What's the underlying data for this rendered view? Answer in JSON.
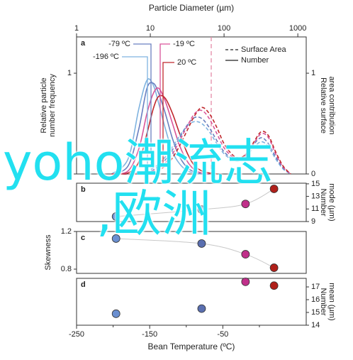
{
  "chart_data": [
    {
      "type": "line",
      "panel": "a",
      "xscale": "log",
      "x_title": "Particle Diameter (µm)",
      "xlim": [
        1,
        1300
      ],
      "xticks": [
        1,
        10,
        100,
        1000
      ],
      "ylabel": [
        "Relative particle",
        "number frequency"
      ],
      "ylim": [
        0,
        1.36
      ],
      "yticks": [
        0,
        1
      ],
      "y2label": [
        "Relative surface",
        "area contribution"
      ],
      "y2lim": [
        0,
        1.36
      ],
      "y2ticks": [
        0,
        1
      ],
      "vline": {
        "x": 67,
        "color": "#e58aa8"
      },
      "legend": [
        "Surface Area",
        "Number"
      ],
      "legend_dash": [
        true,
        false
      ],
      "legend_corner": "top-right",
      "x": [
        3,
        5,
        7,
        9,
        11,
        13,
        16,
        20,
        25,
        32,
        40,
        50,
        63,
        80,
        100,
        130,
        160,
        200,
        250,
        320,
        400,
        500,
        630,
        800
      ],
      "series": [
        {
          "name": "-196 ºC",
          "color": "#7fb3e0",
          "dash": false,
          "values": [
            0,
            0.15,
            0.65,
            0.93,
            0.88,
            0.7,
            0.45,
            0.22,
            0.1,
            0.03,
            0.01,
            0,
            0,
            null,
            null,
            null,
            null,
            null,
            null,
            null,
            null,
            null,
            null,
            null
          ]
        },
        {
          "name": "-79 ºC",
          "color": "#6a7fc0",
          "dash": false,
          "values": [
            0,
            0.08,
            0.45,
            0.85,
            0.9,
            0.8,
            0.6,
            0.35,
            0.17,
            0.06,
            0.02,
            0,
            0,
            null,
            null,
            null,
            null,
            null,
            null,
            null,
            null,
            null,
            null,
            null
          ]
        },
        {
          "name": "-19 ºC",
          "color": "#d9559a",
          "dash": false,
          "values": [
            0,
            0.03,
            0.25,
            0.6,
            0.8,
            0.85,
            0.72,
            0.5,
            0.28,
            0.12,
            0.04,
            0.01,
            0,
            null,
            null,
            null,
            null,
            null,
            null,
            null,
            null,
            null,
            null,
            null
          ]
        },
        {
          "name": "20 ºC",
          "color": "#c0282d",
          "dash": false,
          "values": [
            0,
            0.01,
            0.12,
            0.4,
            0.65,
            0.77,
            0.75,
            0.6,
            0.4,
            0.2,
            0.08,
            0.03,
            0.01,
            0,
            null,
            null,
            null,
            null,
            null,
            null,
            null,
            null,
            null,
            null
          ]
        },
        {
          "color": "#7fb3e0",
          "dash": true,
          "values": [
            0,
            0,
            0.01,
            0.03,
            0.06,
            0.1,
            0.17,
            0.27,
            0.38,
            0.48,
            0.52,
            0.5,
            0.42,
            0.3,
            0.2,
            0.14,
            0.13,
            0.17,
            0.26,
            0.32,
            0.27,
            0.15,
            0.05,
            0
          ]
        },
        {
          "color": "#6a7fc0",
          "dash": true,
          "values": [
            0,
            0,
            0.01,
            0.02,
            0.04,
            0.08,
            0.14,
            0.24,
            0.36,
            0.49,
            0.56,
            0.55,
            0.46,
            0.33,
            0.22,
            0.15,
            0.14,
            0.19,
            0.29,
            0.36,
            0.3,
            0.17,
            0.06,
            0
          ]
        },
        {
          "color": "#d9559a",
          "dash": true,
          "values": [
            0,
            0,
            0,
            0.01,
            0.03,
            0.06,
            0.11,
            0.2,
            0.33,
            0.48,
            0.6,
            0.63,
            0.55,
            0.4,
            0.26,
            0.17,
            0.15,
            0.2,
            0.3,
            0.4,
            0.36,
            0.2,
            0.07,
            0
          ]
        },
        {
          "color": "#c0282d",
          "dash": true,
          "values": [
            0,
            0,
            0,
            0.01,
            0.02,
            0.04,
            0.08,
            0.16,
            0.28,
            0.44,
            0.58,
            0.66,
            0.6,
            0.46,
            0.3,
            0.19,
            0.16,
            0.2,
            0.31,
            0.42,
            0.38,
            0.22,
            0.08,
            0
          ]
        }
      ]
    },
    {
      "type": "scatter",
      "panel": "b",
      "xlim": [
        -250,
        64
      ],
      "trend": true,
      "ylabel": [
        "Number",
        "mode (µm)"
      ],
      "y_side": "right",
      "ylim": [
        9,
        15.1
      ],
      "yticks": [
        9,
        11,
        13,
        15
      ],
      "x": [
        -196,
        -79,
        -19,
        20
      ],
      "values": [
        9.8,
        10.9,
        11.8,
        14.2
      ],
      "colors": [
        "#6a8fd0",
        "#5a6fb0",
        "#c0308a",
        "#b0201a"
      ]
    },
    {
      "type": "scatter",
      "panel": "c",
      "xlim": [
        -250,
        64
      ],
      "trend": true,
      "ylabel": [
        "Skewness"
      ],
      "y_side": "left",
      "ylim": [
        0.755,
        1.2
      ],
      "yticks": [
        0.8,
        1.2
      ],
      "x": [
        -196,
        -79,
        -19,
        20
      ],
      "values": [
        1.125,
        1.072,
        0.958,
        0.815
      ],
      "colors": [
        "#6a8fd0",
        "#5a6fb0",
        "#c0308a",
        "#b0201a"
      ]
    },
    {
      "type": "scatter",
      "panel": "d",
      "xlim": [
        -250,
        64
      ],
      "trend": false,
      "x_title": "Bean Temperature (ºC)",
      "xticks": [
        -250,
        -150,
        -50
      ],
      "xminor": [
        -200,
        -100,
        0
      ],
      "ylabel": [
        "Number",
        "mean (µm)"
      ],
      "y_side": "right",
      "ylim": [
        14,
        17.67
      ],
      "yticks": [
        14,
        15,
        16,
        17
      ],
      "x": [
        -196,
        -79,
        -19,
        20
      ],
      "values": [
        14.9,
        15.3,
        17.4,
        17.1
      ],
      "colors": [
        "#6a8fd0",
        "#5a6fb0",
        "#c0308a",
        "#b0201a"
      ]
    }
  ],
  "overlay": {
    "texts": [
      "yoho潮流志",
      ",欧洲"
    ],
    "color": "#22e0f0"
  }
}
